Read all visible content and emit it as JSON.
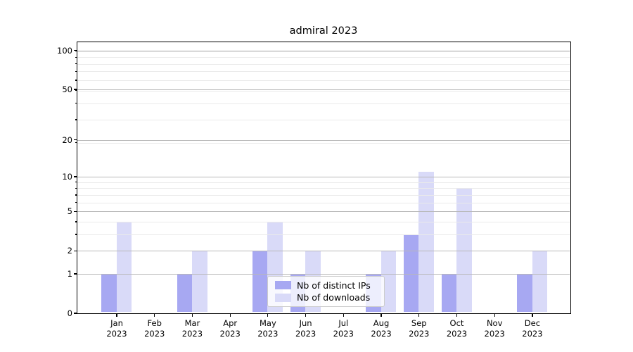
{
  "title": "admiral 2023",
  "chart_data": {
    "type": "bar",
    "title": "admiral 2023",
    "categories": [
      "Jan 2023",
      "Feb 2023",
      "Mar 2023",
      "Apr 2023",
      "May 2023",
      "Jun 2023",
      "Jul 2023",
      "Aug 2023",
      "Sep 2023",
      "Oct 2023",
      "Nov 2023",
      "Dec 2023"
    ],
    "months": [
      "Jan",
      "Feb",
      "Mar",
      "Apr",
      "May",
      "Jun",
      "Jul",
      "Aug",
      "Sep",
      "Oct",
      "Nov",
      "Dec"
    ],
    "year_label": "2023",
    "series": [
      {
        "name": "Nb of distinct IPs",
        "color": "#a7a8f2",
        "values": [
          1,
          0,
          1,
          0,
          2,
          1,
          0,
          1,
          3,
          1,
          0,
          1
        ]
      },
      {
        "name": "Nb of downloads",
        "color": "#d9daf8",
        "values": [
          4,
          0,
          2,
          0,
          4,
          2,
          0,
          2,
          11,
          8,
          0,
          2
        ]
      }
    ],
    "y_scale": "log10(1+x)",
    "y_major_ticks": [
      0,
      1,
      2,
      5,
      10,
      20,
      50,
      100
    ],
    "y_minor_ticks": [
      3,
      4,
      6,
      7,
      8,
      9,
      19,
      29,
      39,
      49,
      59,
      69,
      79,
      89,
      99
    ],
    "ylim": [
      0,
      115
    ],
    "xlabel": "",
    "ylabel": "",
    "grid": "horizontal",
    "legend_position": "lower-center"
  }
}
